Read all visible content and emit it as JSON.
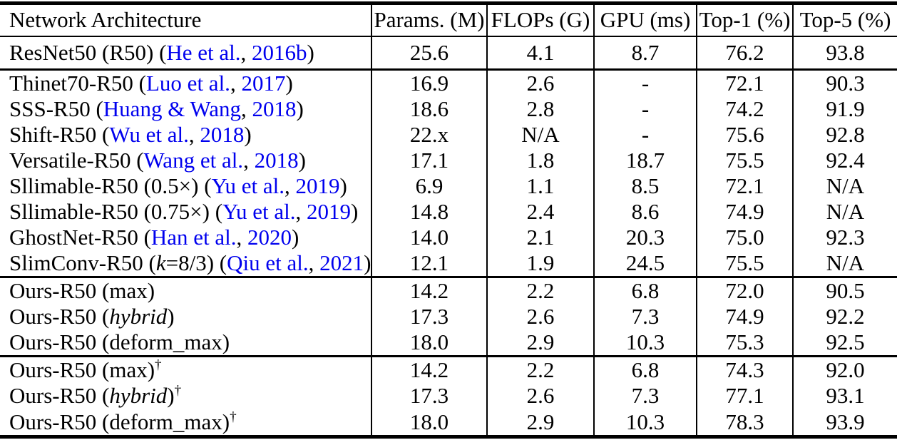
{
  "colors": {
    "text": "#000000",
    "citation_blue": "#0000EE",
    "rule_black": "#000000",
    "background": "#ffffff"
  },
  "table": {
    "columns": [
      {
        "label": "Network Architecture"
      },
      {
        "label": "Params. (M)"
      },
      {
        "label": "FLOPs (G)"
      },
      {
        "label": "GPU (ms)"
      },
      {
        "label": "Top-1 (%)"
      },
      {
        "label": "Top-5 (%)"
      }
    ],
    "sections": [
      {
        "name": "baseline",
        "rows": [
          {
            "architecture": [
              {
                "t": "ResNet50 (R50) (",
                "s": "plain"
              },
              {
                "t": "He et al.",
                "s": "cite"
              },
              {
                "t": ", ",
                "s": "plain"
              },
              {
                "t": "2016b",
                "s": "cite"
              },
              {
                "t": ")",
                "s": "plain"
              }
            ],
            "values": [
              "25.6",
              "4.1",
              "8.7",
              "76.2",
              "93.8"
            ]
          }
        ]
      },
      {
        "name": "prior-work",
        "rows": [
          {
            "architecture": [
              {
                "t": "Thinet70-R50 (",
                "s": "plain"
              },
              {
                "t": "Luo et al.",
                "s": "cite"
              },
              {
                "t": ", ",
                "s": "plain"
              },
              {
                "t": "2017",
                "s": "cite"
              },
              {
                "t": ")",
                "s": "plain"
              }
            ],
            "values": [
              "16.9",
              "2.6",
              "-",
              "72.1",
              "90.3"
            ]
          },
          {
            "architecture": [
              {
                "t": "SSS-R50 (",
                "s": "plain"
              },
              {
                "t": "Huang & Wang",
                "s": "cite"
              },
              {
                "t": ", ",
                "s": "plain"
              },
              {
                "t": "2018",
                "s": "cite"
              },
              {
                "t": ")",
                "s": "plain"
              }
            ],
            "values": [
              "18.6",
              "2.8",
              "-",
              "74.2",
              "91.9"
            ]
          },
          {
            "architecture": [
              {
                "t": "Shift-R50 (",
                "s": "plain"
              },
              {
                "t": "Wu et al.",
                "s": "cite"
              },
              {
                "t": ", ",
                "s": "plain"
              },
              {
                "t": "2018",
                "s": "cite"
              },
              {
                "t": ")",
                "s": "plain"
              }
            ],
            "values": [
              "22.x",
              "N/A",
              "-",
              "75.6",
              "92.8"
            ]
          },
          {
            "architecture": [
              {
                "t": "Versatile-R50 (",
                "s": "plain"
              },
              {
                "t": "Wang et al.",
                "s": "cite"
              },
              {
                "t": ", ",
                "s": "plain"
              },
              {
                "t": "2018",
                "s": "cite"
              },
              {
                "t": ")",
                "s": "plain"
              }
            ],
            "values": [
              "17.1",
              "1.8",
              "18.7",
              "75.5",
              "92.4"
            ]
          },
          {
            "architecture": [
              {
                "t": "Sllimable-R50 (0.5×) (",
                "s": "plain"
              },
              {
                "t": "Yu et al.",
                "s": "cite"
              },
              {
                "t": ", ",
                "s": "plain"
              },
              {
                "t": "2019",
                "s": "cite"
              },
              {
                "t": ")",
                "s": "plain"
              }
            ],
            "values": [
              "6.9",
              "1.1",
              "8.5",
              "72.1",
              "N/A"
            ]
          },
          {
            "architecture": [
              {
                "t": "Sllimable-R50 (0.75×) (",
                "s": "plain"
              },
              {
                "t": "Yu et al.",
                "s": "cite"
              },
              {
                "t": ", ",
                "s": "plain"
              },
              {
                "t": "2019",
                "s": "cite"
              },
              {
                "t": ")",
                "s": "plain"
              }
            ],
            "values": [
              "14.8",
              "2.4",
              "8.6",
              "74.9",
              "N/A"
            ]
          },
          {
            "architecture": [
              {
                "t": "GhostNet-R50 (",
                "s": "plain"
              },
              {
                "t": "Han et al.",
                "s": "cite"
              },
              {
                "t": ", ",
                "s": "plain"
              },
              {
                "t": "2020",
                "s": "cite"
              },
              {
                "t": ")",
                "s": "plain"
              }
            ],
            "values": [
              "14.0",
              "2.1",
              "20.3",
              "75.0",
              "92.3"
            ]
          },
          {
            "architecture": [
              {
                "t": "SlimConv-R50 (",
                "s": "plain"
              },
              {
                "t": "k",
                "s": "italic"
              },
              {
                "t": "=8/3) (",
                "s": "plain"
              },
              {
                "t": "Qiu et al.",
                "s": "cite"
              },
              {
                "t": ", ",
                "s": "plain"
              },
              {
                "t": "2021",
                "s": "cite"
              },
              {
                "t": ")",
                "s": "plain"
              }
            ],
            "values": [
              "12.1",
              "1.9",
              "24.5",
              "75.5",
              "N/A"
            ]
          }
        ]
      },
      {
        "name": "ours",
        "rows": [
          {
            "architecture": [
              {
                "t": "Ours-R50 (max)",
                "s": "plain"
              }
            ],
            "values": [
              "14.2",
              "2.2",
              "6.8",
              "72.0",
              "90.5"
            ]
          },
          {
            "architecture": [
              {
                "t": "Ours-R50 (",
                "s": "plain"
              },
              {
                "t": "hybrid",
                "s": "italic"
              },
              {
                "t": ")",
                "s": "plain"
              }
            ],
            "values": [
              "17.3",
              "2.6",
              "7.3",
              "74.9",
              "92.2"
            ]
          },
          {
            "architecture": [
              {
                "t": "Ours-R50 (deform_max)",
                "s": "plain"
              }
            ],
            "values": [
              "18.0",
              "2.9",
              "10.3",
              "75.3",
              "92.5"
            ]
          }
        ]
      },
      {
        "name": "ours-dagger",
        "rows": [
          {
            "architecture": [
              {
                "t": "Ours-R50 (max)",
                "s": "plain"
              },
              {
                "t": "†",
                "s": "sup"
              }
            ],
            "values": [
              "14.2",
              "2.2",
              "6.8",
              "74.3",
              "92.0"
            ]
          },
          {
            "architecture": [
              {
                "t": "Ours-R50 (",
                "s": "plain"
              },
              {
                "t": "hybrid",
                "s": "italic"
              },
              {
                "t": ")",
                "s": "plain"
              },
              {
                "t": "†",
                "s": "sup"
              }
            ],
            "values": [
              "17.3",
              "2.6",
              "7.3",
              "77.1",
              "93.1"
            ]
          },
          {
            "architecture": [
              {
                "t": "Ours-R50 (deform_max)",
                "s": "plain"
              },
              {
                "t": "†",
                "s": "sup"
              }
            ],
            "values": [
              "18.0",
              "2.9",
              "10.3",
              "78.3",
              "93.9"
            ]
          }
        ]
      }
    ]
  }
}
